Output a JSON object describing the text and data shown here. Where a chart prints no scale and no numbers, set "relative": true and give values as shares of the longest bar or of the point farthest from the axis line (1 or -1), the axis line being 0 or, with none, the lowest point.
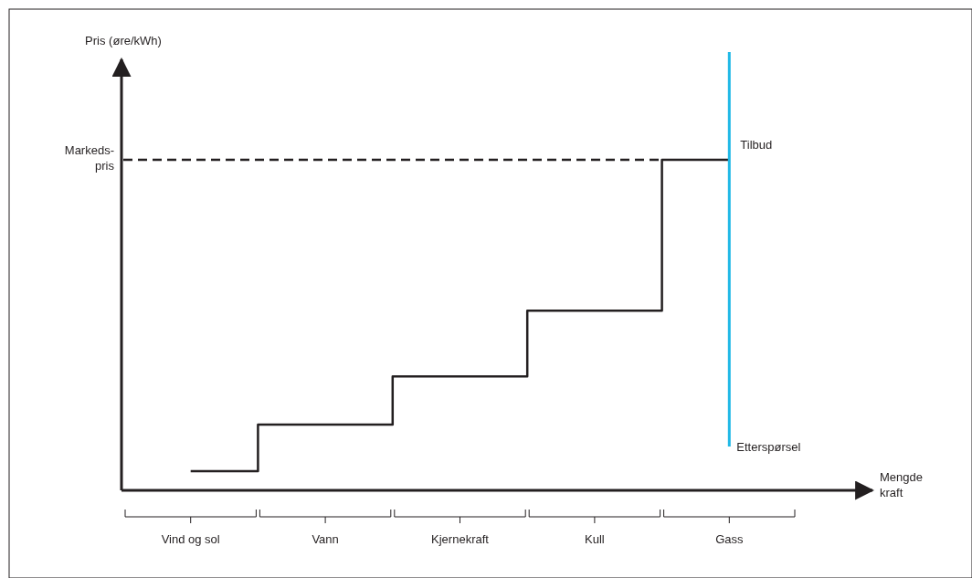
{
  "chart_data": {
    "type": "line",
    "relative": true,
    "ylabel": "Pris (øre/kWh)",
    "xlabel": "Mengde kraft",
    "tick_labels": "x",
    "categories": [
      "Vind og sol",
      "Vann",
      "Kjernekraft",
      "Kull",
      "Gass"
    ],
    "series": [
      {
        "name": "Tilbud",
        "type": "step",
        "color": "#231f20",
        "values": [
          0.044,
          0.15,
          0.26,
          0.41,
          0.754
        ]
      },
      {
        "name": "Etterspørsel",
        "color": "#1fb8e6",
        "x": [
          "Gass",
          "Gass"
        ],
        "values": [
          1,
          0.1
        ]
      }
    ],
    "ref_lines": [
      {
        "axis": "y",
        "value": 0.754,
        "label": "Markeds-pris",
        "line_style": "dashed",
        "color": "#231f20"
      }
    ]
  }
}
